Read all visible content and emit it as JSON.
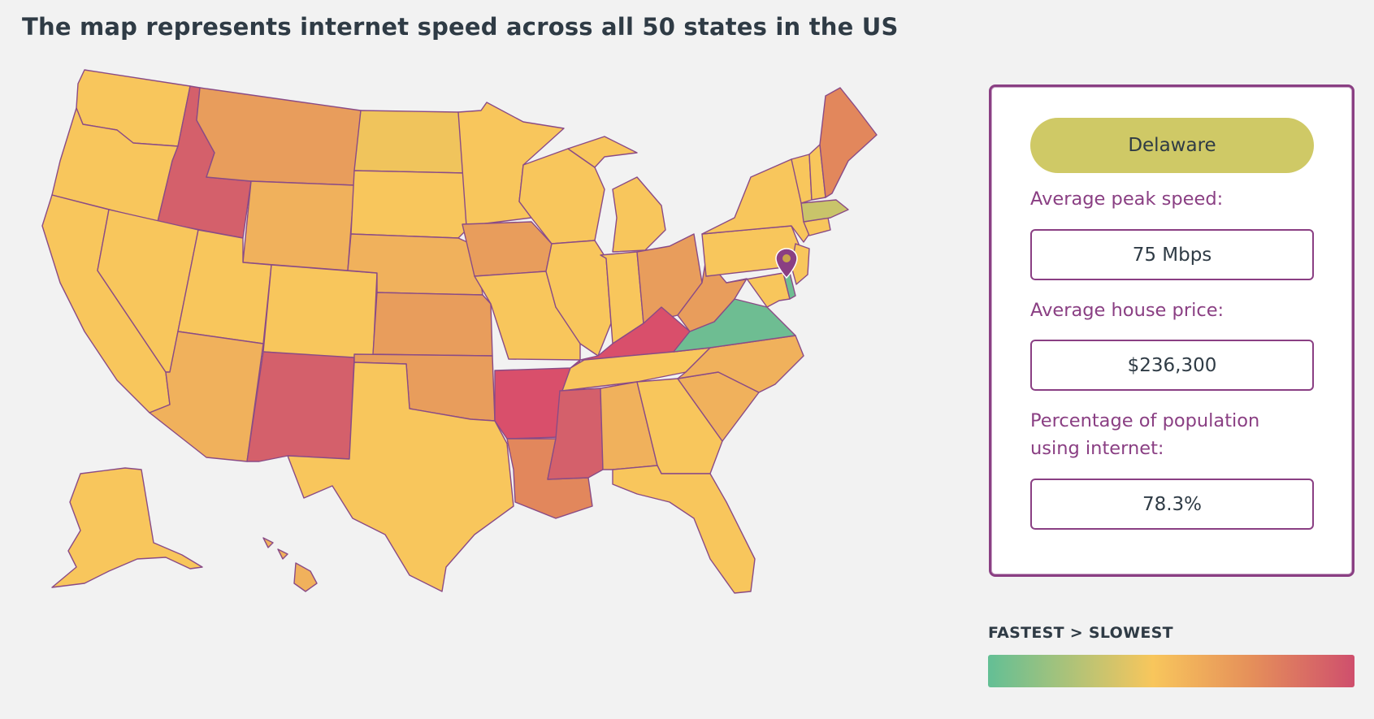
{
  "title": "The map represents internet speed across all 50 states in the US",
  "colors": {
    "fastest": "#63bf95",
    "fast": "#cfc966",
    "mid": "#f8c65c",
    "slowish": "#f0b15c",
    "slow": "#e89d5c",
    "slower": "#e2875c",
    "slowest": "#d4606b",
    "border": "#8a4b86",
    "accent": "#8a3f83"
  },
  "map": {
    "marker_icon": "map-pin-icon",
    "selected_state": "Delaware"
  },
  "panel": {
    "state_name": "Delaware",
    "peak_speed_label": "Average peak speed:",
    "peak_speed_value": "75 Mbps",
    "house_price_label": "Average house price:",
    "house_price_value": "$236,300",
    "internet_label_line1": "Percentage of population",
    "internet_label_line2": "using internet:",
    "internet_value": "78.3%"
  },
  "legend": {
    "title": "FASTEST > SLOWEST",
    "scale": [
      "#63bf95",
      "#f8c65c",
      "#e58f5a",
      "#cf4f6d"
    ]
  }
}
